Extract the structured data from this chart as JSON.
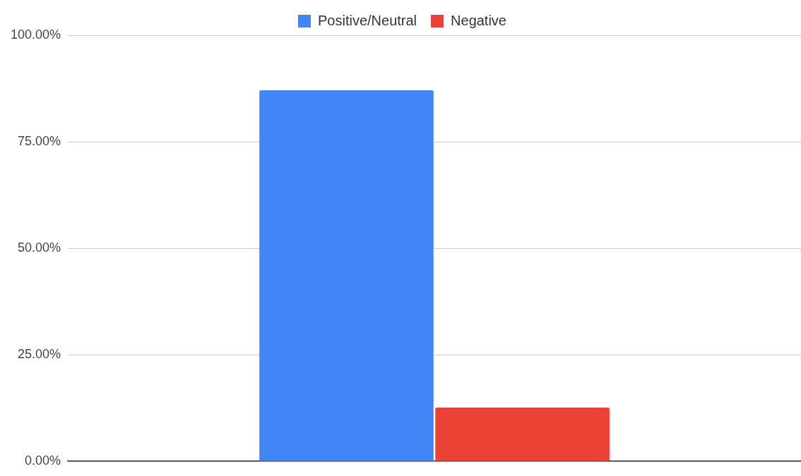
{
  "chart_data": {
    "type": "bar",
    "categories": [
      null
    ],
    "series": [
      {
        "name": "Positive/Neutral",
        "color": "#4285f4",
        "values": [
          87.1
        ]
      },
      {
        "name": "Negative",
        "color": "#ea4335",
        "values": [
          12.6
        ]
      }
    ],
    "ylim": [
      0,
      100
    ],
    "yticks": [
      {
        "value": 0,
        "label": "0.00%"
      },
      {
        "value": 25,
        "label": "25.00%"
      },
      {
        "value": 50,
        "label": "50.00%"
      },
      {
        "value": 75,
        "label": "75.00%"
      },
      {
        "value": 100,
        "label": "100.00%"
      }
    ],
    "grid": "y",
    "legend": "top"
  }
}
